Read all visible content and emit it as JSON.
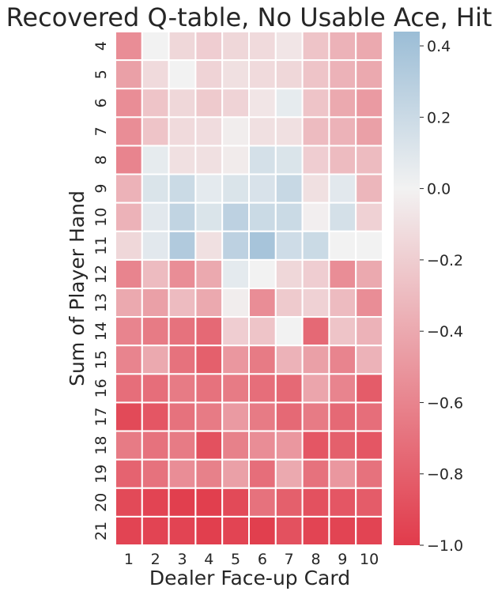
{
  "chart_data": {
    "type": "heatmap",
    "title": "Recovered Q-table, No Usable Ace, Hit",
    "xlabel": "Dealer Face-up Card",
    "ylabel": "Sum of Player Hand",
    "x_categories": [
      "1",
      "2",
      "3",
      "4",
      "5",
      "6",
      "7",
      "8",
      "9",
      "10"
    ],
    "y_categories": [
      "4",
      "5",
      "6",
      "7",
      "8",
      "9",
      "10",
      "11",
      "12",
      "13",
      "14",
      "15",
      "16",
      "17",
      "18",
      "19",
      "20",
      "21"
    ],
    "values": [
      [
        -0.55,
        0.0,
        -0.15,
        -0.2,
        -0.15,
        -0.13,
        -0.07,
        -0.25,
        -0.35,
        -0.4
      ],
      [
        -0.45,
        -0.13,
        0.0,
        -0.17,
        -0.1,
        -0.13,
        -0.15,
        -0.25,
        -0.35,
        -0.4
      ],
      [
        -0.55,
        -0.25,
        -0.15,
        -0.22,
        -0.17,
        -0.07,
        0.06,
        -0.25,
        -0.4,
        -0.48
      ],
      [
        -0.55,
        -0.25,
        -0.13,
        -0.12,
        -0.03,
        -0.1,
        -0.1,
        -0.3,
        -0.35,
        -0.45
      ],
      [
        -0.6,
        0.06,
        -0.1,
        -0.1,
        -0.04,
        0.15,
        0.12,
        -0.2,
        -0.3,
        -0.3
      ],
      [
        -0.35,
        0.12,
        0.2,
        0.07,
        0.12,
        0.13,
        0.22,
        -0.1,
        0.08,
        -0.33
      ],
      [
        -0.35,
        0.08,
        0.25,
        0.12,
        0.27,
        0.2,
        0.2,
        -0.02,
        0.15,
        -0.18
      ],
      [
        -0.15,
        0.08,
        0.33,
        -0.1,
        0.27,
        0.38,
        0.18,
        0.2,
        0.0,
        0.0
      ],
      [
        -0.6,
        -0.3,
        -0.55,
        -0.4,
        0.07,
        0.0,
        -0.15,
        -0.2,
        -0.55,
        -0.4
      ],
      [
        -0.4,
        -0.45,
        -0.3,
        -0.4,
        -0.03,
        -0.55,
        -0.22,
        -0.18,
        -0.3,
        -0.55
      ],
      [
        -0.6,
        -0.65,
        -0.7,
        -0.75,
        -0.2,
        -0.25,
        0.0,
        -0.75,
        -0.25,
        -0.35
      ],
      [
        -0.6,
        -0.4,
        -0.7,
        -0.8,
        -0.5,
        -0.65,
        -0.35,
        -0.45,
        -0.6,
        -0.35
      ],
      [
        -0.72,
        -0.72,
        -0.65,
        -0.7,
        -0.65,
        -0.72,
        -0.75,
        -0.42,
        -0.6,
        -0.82
      ],
      [
        -0.92,
        -0.85,
        -0.7,
        -0.65,
        -0.48,
        -0.65,
        -0.75,
        -0.65,
        -0.75,
        -0.72
      ],
      [
        -0.65,
        -0.7,
        -0.65,
        -0.88,
        -0.62,
        -0.55,
        -0.5,
        -0.85,
        -0.8,
        -0.85
      ],
      [
        -0.78,
        -0.7,
        -0.55,
        -0.62,
        -0.45,
        -0.72,
        -0.4,
        -0.7,
        -0.5,
        -0.7
      ],
      [
        -0.92,
        -0.95,
        -0.98,
        -0.98,
        -0.92,
        -0.7,
        -0.8,
        -0.88,
        -0.85,
        -0.82
      ],
      [
        -0.95,
        -0.95,
        -0.95,
        -0.98,
        -0.95,
        -0.98,
        -0.88,
        -0.95,
        -0.95,
        -0.95
      ]
    ],
    "vmin": -1.0,
    "vmax": 0.44,
    "colorbar_ticks": [
      0.4,
      0.2,
      0.0,
      -0.2,
      -0.4,
      -0.6,
      -0.8,
      -1.0
    ],
    "colorbar_tick_labels": [
      "0.4",
      "0.2",
      "0.0",
      "−0.2",
      "−0.4",
      "−0.6",
      "−0.8",
      "−1.0"
    ],
    "colorbar_placement": "right",
    "colors": {
      "negative": "#e13b4b",
      "center": "#f2f2f2",
      "positive": "#9bbdd6",
      "grid": "#ffffff"
    }
  }
}
